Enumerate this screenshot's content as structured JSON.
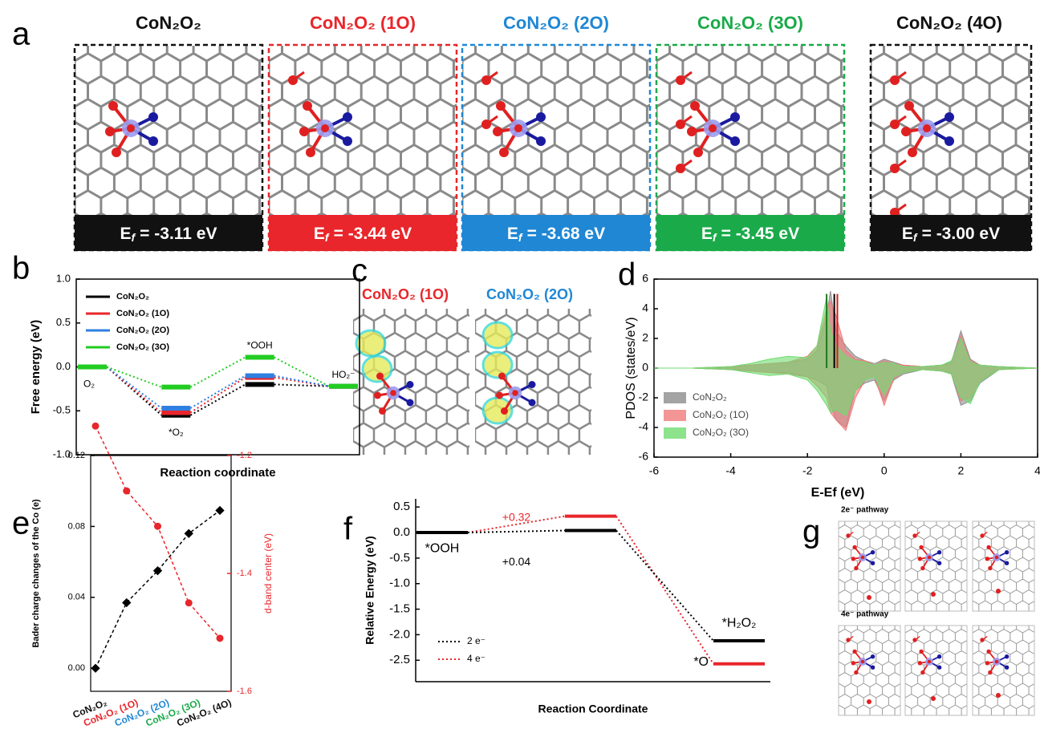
{
  "panel_labels": [
    "a",
    "b",
    "c",
    "d",
    "e",
    "f",
    "g"
  ],
  "structures": {
    "energy_symbol": "E",
    "energy_subscript": "f",
    "tiles": [
      {
        "title": "CoN₂O₂",
        "color": "#111111",
        "energy": "= -3.11 eV"
      },
      {
        "title": "CoN₂O₂ (1O)",
        "color": "#e8262b",
        "energy": "= -3.44 eV"
      },
      {
        "title": "CoN₂O₂ (2O)",
        "color": "#1f87d4",
        "energy": "= -3.68 eV"
      },
      {
        "title": "CoN₂O₂ (3O)",
        "color": "#1aaa4a",
        "energy": "= -3.45 eV"
      },
      {
        "title": "CoN₂O₂ (4O)",
        "color": "#111111",
        "energy": "= -3.00 eV"
      }
    ]
  },
  "charge_density": {
    "titles": [
      {
        "text": "CoN₂O₂ (1O)",
        "color": "#e8262b"
      },
      {
        "text": "CoN₂O₂ (2O)",
        "color": "#1f87d4"
      }
    ]
  },
  "pathways": {
    "labels": [
      "2e⁻ pathway",
      "4e⁻ pathway"
    ]
  },
  "chart_data": [
    {
      "type": "levels",
      "xlabel": "Reaction coordinate",
      "ylabel": "Free energy (eV)",
      "categories": [
        "O₂",
        "*O₂",
        "*OOH",
        "HO₂⁻"
      ],
      "series": [
        {
          "name": "CoN₂O₂",
          "color": "#000000",
          "values": [
            0,
            -0.55,
            -0.2,
            -0.22
          ]
        },
        {
          "name": "CoN₂O₂ (1O)",
          "color": "#e8262b",
          "values": [
            0,
            -0.52,
            -0.12,
            -0.22
          ]
        },
        {
          "name": "CoN₂O₂ (2O)",
          "color": "#2f7fe0",
          "values": [
            0,
            -0.47,
            -0.1,
            -0.22
          ]
        },
        {
          "name": "CoN₂O₂ (3O)",
          "color": "#22cc22",
          "values": [
            0,
            -0.23,
            0.11,
            -0.22
          ]
        }
      ],
      "ylim": [
        -1,
        1
      ],
      "yticks": [
        {
          "value": -1,
          "label": "-1.0"
        },
        -0.5,
        {
          "value": 0,
          "label": "0.0"
        },
        0.5,
        {
          "value": 1,
          "label": "1.0"
        }
      ],
      "legend": "upper left"
    },
    {
      "type": "area",
      "xlabel": "E-Ef (eV)",
      "ylabel": "PDOS (states/eV)",
      "x": [
        -6,
        -5,
        -4,
        -3.5,
        -3,
        -2.5,
        -2,
        -1.75,
        -1.5,
        -1.4,
        -1.25,
        -1,
        -0.75,
        -0.5,
        -0.25,
        0,
        0.25,
        0.5,
        1,
        1.5,
        1.75,
        2,
        2.25,
        2.5,
        3,
        4
      ],
      "series": [
        {
          "name": "CoN₂O₂",
          "color": "#8c8c8c",
          "values": [
            0,
            0,
            0.1,
            0.2,
            0.3,
            0.4,
            0.6,
            1.2,
            3.5,
            5.2,
            2.5,
            1.5,
            0.8,
            0.5,
            0.3,
            0.6,
            0.4,
            0.2,
            0.1,
            0.2,
            0.4,
            2.5,
            0.6,
            0.2,
            0.1,
            0
          ],
          "values_down": [
            0,
            0,
            -0.1,
            -0.2,
            -0.3,
            -0.3,
            -0.6,
            -0.8,
            -1.2,
            -2.5,
            -3.5,
            -4.0,
            -1.5,
            -1.0,
            -0.8,
            -2.2,
            -0.8,
            -0.4,
            -0.1,
            -0.2,
            -0.4,
            -2.5,
            -2.2,
            -1.0,
            -0.1,
            0
          ]
        },
        {
          "name": "CoN₂O₂ (1O)",
          "color": "#f07a7a",
          "values": [
            0,
            0,
            0.1,
            0.2,
            0.3,
            0.4,
            0.8,
            1.5,
            4.0,
            4.5,
            3.5,
            1.2,
            0.6,
            0.5,
            0.2,
            0.5,
            0.3,
            0.2,
            0.1,
            0.2,
            0.3,
            2.2,
            0.5,
            0.2,
            0.1,
            0
          ],
          "values_down": [
            0,
            0,
            -0.1,
            -0.2,
            -0.3,
            -0.4,
            -0.6,
            -1.2,
            -2.0,
            -3.0,
            -3.5,
            -4.2,
            -2.0,
            -0.8,
            -0.6,
            -2.5,
            -0.7,
            -0.3,
            -0.1,
            -0.2,
            -0.3,
            -2.2,
            -2.0,
            -0.8,
            -0.1,
            0
          ]
        },
        {
          "name": "CoN₂O₂ (3O)",
          "color": "#6fdc6f",
          "values": [
            0,
            0,
            0.1,
            0.3,
            0.6,
            0.8,
            0.7,
            1.5,
            4.8,
            2.5,
            1.5,
            0.8,
            0.5,
            0.4,
            0.2,
            0.4,
            0.3,
            0.1,
            0.1,
            0.2,
            0.5,
            2.0,
            0.4,
            0.2,
            0.1,
            0
          ],
          "values_down": [
            0,
            0,
            -0.1,
            -0.3,
            -0.5,
            -0.4,
            -0.8,
            -1.5,
            -2.5,
            -3.0,
            -2.8,
            -3.2,
            -1.5,
            -0.8,
            -0.6,
            -1.8,
            -0.6,
            -0.3,
            -0.1,
            -0.2,
            -0.4,
            -2.0,
            -2.4,
            -0.9,
            -0.1,
            0
          ]
        }
      ],
      "vlines": [
        {
          "x": -1.5,
          "y": 5,
          "color": "#1f7a1f"
        },
        {
          "x": -1.3,
          "y": 5,
          "color": "#000000"
        },
        {
          "x": -1.22,
          "y": 5,
          "color": "#d22020"
        }
      ],
      "xlim": [
        -6,
        4
      ],
      "xticks": [
        -6,
        -4,
        -2,
        0,
        2,
        4
      ],
      "ylim": [
        -6,
        6
      ],
      "yticks": [
        -6,
        -4,
        -2,
        0,
        2,
        4,
        6
      ],
      "legend": "lower left"
    },
    {
      "type": "dual",
      "ylabel": "Bader charge changes of the Co (e)",
      "y2label": "d-band center (eV)",
      "categories": [
        "CoN₂O₂",
        "CoN₂O₂ (1O)",
        "CoN₂O₂ (2O)",
        "CoN₂O₂ (3O)",
        "CoN₂O₂ (4O)"
      ],
      "category_colors": [
        "#111111",
        "#e8262b",
        "#1f87d4",
        "#1aaa4a",
        "#111111"
      ],
      "series": [
        {
          "color": "#000000",
          "values": [
            0,
            0.037,
            0.055,
            0.076,
            0.089
          ]
        },
        {
          "color": "#e8262b",
          "axis": "y2",
          "values": [
            -1.15,
            -1.26,
            -1.32,
            -1.45,
            -1.51
          ]
        }
      ],
      "ylim": [
        -0.013,
        0.12
      ],
      "yticks": [
        {
          "value": 0,
          "label": "0.00"
        },
        0.04,
        0.08,
        0.12
      ],
      "y2lim": [
        -1.6,
        -1.2
      ],
      "y2ticks": [
        -1.6,
        -1.4,
        -1.2
      ]
    },
    {
      "type": "pathway",
      "xlabel": "Reaction Coordinate",
      "ylabel": "Relative Energy (eV)",
      "series": [
        {
          "name": "2 e⁻",
          "color": "#000000",
          "values": [
            0,
            0.04,
            -2.12
          ],
          "value_labels": [
            null,
            "+0.04",
            null
          ]
        },
        {
          "name": "4 e⁻",
          "color": "#e8262b",
          "values": [
            0,
            0.32,
            -2.57
          ],
          "value_labels": [
            null,
            "+0.32",
            null
          ]
        }
      ],
      "level_labels": [
        "*OOH",
        "*H₂O₂",
        "*O"
      ],
      "ylim": [
        -2.92,
        0.66
      ],
      "yticks": [
        0.5,
        {
          "value": 0,
          "label": "0.0"
        },
        -0.5,
        {
          "value": -1,
          "label": "-1.0"
        },
        -1.5,
        {
          "value": -2,
          "label": "-2.0"
        },
        -2.5
      ],
      "legend": "lower left"
    }
  ]
}
